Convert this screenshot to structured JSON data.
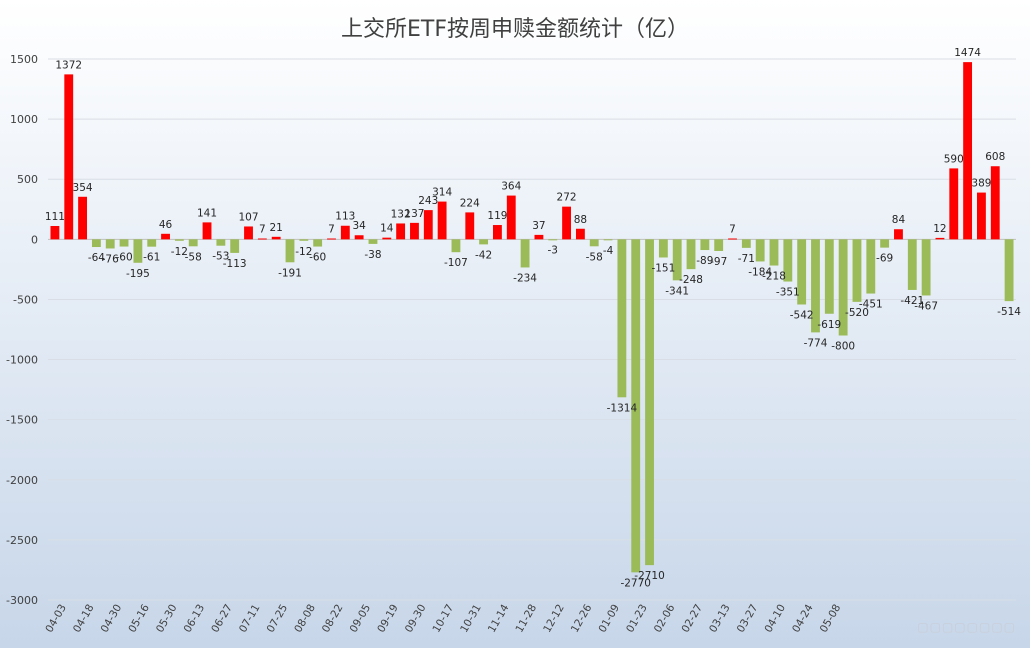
{
  "chart_data": {
    "type": "bar",
    "title": "上交所ETF按周申赎金额统计（亿）",
    "ylim": [
      -3000,
      1500
    ],
    "yticks": [
      "1500",
      "1000",
      "500",
      "0",
      "-500",
      "-1000",
      "-1500",
      "-2000",
      "-2500",
      "-3000"
    ],
    "grid": true,
    "colors": {
      "positive": "#ff0000",
      "negative": "#9bbb59"
    },
    "values": [
      111,
      1372,
      354,
      -64,
      -76,
      -60,
      -195,
      -61,
      46,
      -12,
      -58,
      141,
      -53,
      -113,
      107,
      7,
      21,
      -191,
      -12,
      -60,
      7,
      113,
      34,
      -38,
      14,
      132,
      137,
      243,
      314,
      -107,
      224,
      -42,
      119,
      364,
      -234,
      37,
      -3,
      272,
      88,
      -58,
      -4,
      -1314,
      -2770,
      -2710,
      -151,
      -341,
      -248,
      -89,
      -97,
      7,
      -71,
      -184,
      -218,
      -351,
      -542,
      -774,
      -619,
      -800,
      -520,
      -451,
      -69,
      84,
      -421,
      -467,
      12,
      590,
      1474,
      389,
      608,
      -514
    ],
    "data_labels": [
      "111",
      "1372",
      "354",
      "-64",
      "-76",
      "-60",
      "-195",
      "-61",
      "46",
      "-12",
      "-58",
      "141",
      "-53",
      "-113",
      "107",
      "7",
      "21",
      "-191",
      "-12",
      "-60",
      "7",
      "113",
      "34",
      "-38",
      "14",
      "132",
      "137",
      "243",
      "314",
      "-107",
      "224",
      "-42",
      "119",
      "364",
      "-234",
      "37",
      "-3",
      "272",
      "88",
      "-58",
      "-4",
      "-1314",
      "-2770",
      "-2710",
      "-151",
      "-341",
      "-248",
      "-89",
      "-97",
      "7",
      "-71",
      "-184",
      "-218",
      "-351",
      "-542",
      "-774",
      "-619",
      "-800",
      "-520",
      "-451",
      "-69",
      "84",
      "-421",
      "-467",
      "12",
      "590",
      "1474",
      "389",
      "608",
      "-514"
    ],
    "x_tick_labels": [
      "04-03",
      "04-18",
      "04-30",
      "05-16",
      "05-30",
      "06-13",
      "06-27",
      "07-11",
      "07-25",
      "08-08",
      "08-22",
      "09-05",
      "09-19",
      "09-30",
      "10-17",
      "10-31",
      "11-14",
      "11-28",
      "12-12",
      "12-26",
      "01-09",
      "01-23",
      "02-06",
      "02-27",
      "03-13",
      "03-27",
      "04-10",
      "04-24",
      "05-08"
    ]
  }
}
